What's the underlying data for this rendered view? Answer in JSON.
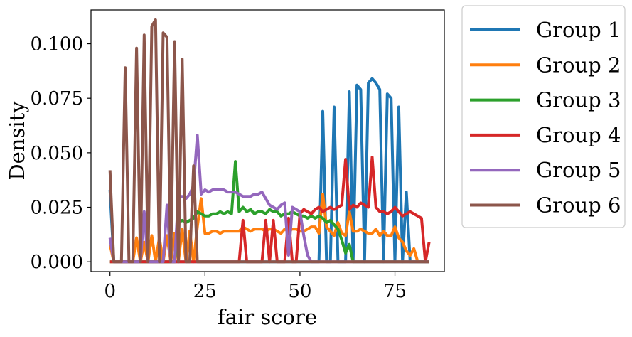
{
  "chart_data": {
    "type": "line",
    "xlabel": "fair score",
    "ylabel": "Density",
    "xlim": [
      -5,
      88
    ],
    "ylim": [
      -0.0045,
      0.1155
    ],
    "xticks": [
      0,
      25,
      50,
      75
    ],
    "xtick_labels": [
      "0",
      "25",
      "50",
      "75"
    ],
    "yticks": [
      0.0,
      0.025,
      0.05,
      0.075,
      0.1
    ],
    "ytick_labels": [
      "0.000",
      "0.025",
      "0.050",
      "0.075",
      "0.100"
    ],
    "grid": false,
    "legend_position": "outside-right",
    "series": [
      {
        "name": "Group 1",
        "color": "#1f77b4",
        "x": [
          0,
          1,
          2,
          3,
          4,
          5,
          6,
          7,
          8,
          9,
          10,
          11,
          12,
          13,
          14,
          15,
          16,
          17,
          18,
          19,
          20,
          21,
          22,
          23,
          24,
          25,
          26,
          27,
          28,
          29,
          30,
          31,
          32,
          33,
          34,
          35,
          36,
          37,
          38,
          39,
          40,
          41,
          42,
          43,
          44,
          45,
          46,
          47,
          48,
          49,
          50,
          51,
          52,
          53,
          54,
          55,
          56,
          57,
          58,
          59,
          60,
          61,
          62,
          63,
          64,
          65,
          66,
          67,
          68,
          69,
          70,
          71,
          72,
          73,
          74,
          75,
          76,
          77,
          78,
          79,
          80,
          81,
          82,
          83,
          84
        ],
        "y": [
          0.033,
          0,
          0,
          0,
          0,
          0,
          0,
          0,
          0,
          0,
          0,
          0,
          0,
          0,
          0,
          0,
          0,
          0,
          0,
          0,
          0,
          0,
          0,
          0,
          0,
          0,
          0,
          0,
          0,
          0,
          0,
          0,
          0,
          0,
          0,
          0,
          0,
          0,
          0,
          0,
          0,
          0,
          0,
          0,
          0,
          0,
          0,
          0,
          0,
          0,
          0,
          0,
          0,
          0,
          0,
          0,
          0.069,
          0,
          0,
          0.071,
          0,
          0,
          0,
          0.078,
          0,
          0.081,
          0.079,
          0,
          0.082,
          0.084,
          0.082,
          0.079,
          0,
          0.077,
          0.075,
          0,
          0.071,
          0,
          0.032,
          0,
          0,
          0,
          0,
          0,
          0
        ]
      },
      {
        "name": "Group 2",
        "color": "#ff7f0e",
        "x": [
          0,
          1,
          2,
          3,
          4,
          5,
          6,
          7,
          8,
          9,
          10,
          11,
          12,
          13,
          14,
          15,
          16,
          17,
          18,
          19,
          20,
          21,
          22,
          23,
          24,
          25,
          26,
          27,
          28,
          29,
          30,
          31,
          32,
          33,
          34,
          35,
          36,
          37,
          38,
          39,
          40,
          41,
          42,
          43,
          44,
          45,
          46,
          47,
          48,
          49,
          50,
          51,
          52,
          53,
          54,
          55,
          56,
          57,
          58,
          59,
          60,
          61,
          62,
          63,
          64,
          65,
          66,
          67,
          68,
          69,
          70,
          71,
          72,
          73,
          74,
          75,
          76,
          77,
          78,
          79,
          80,
          81,
          82,
          83,
          84
        ],
        "y": [
          0.008,
          0,
          0,
          0,
          0,
          0,
          0,
          0.011,
          0,
          0.009,
          0,
          0.012,
          0,
          0.011,
          0,
          0.012,
          0,
          0.013,
          0,
          0.015,
          0,
          0.014,
          0,
          0.016,
          0.029,
          0.013,
          0.013,
          0.014,
          0.014,
          0.013,
          0.014,
          0.014,
          0.014,
          0.014,
          0.014,
          0.016,
          0.015,
          0.014,
          0.015,
          0.015,
          0.015,
          0.014,
          0.015,
          0.015,
          0.014,
          0.013,
          0.015,
          0.014,
          0.015,
          0.015,
          0.014,
          0.014,
          0.015,
          0.016,
          0.016,
          0.013,
          0.031,
          0.016,
          0.014,
          0.012,
          0.018,
          0.013,
          0.012,
          0.023,
          0.014,
          0.014,
          0.015,
          0.014,
          0.013,
          0.013,
          0.015,
          0.012,
          0.014,
          0.012,
          0.012,
          0.016,
          0.011,
          0.009,
          0.005,
          0.003,
          0.006,
          0,
          0,
          0,
          0
        ]
      },
      {
        "name": "Group 3",
        "color": "#2ca02c",
        "x": [
          0,
          1,
          2,
          3,
          4,
          5,
          6,
          7,
          8,
          9,
          10,
          11,
          12,
          13,
          14,
          15,
          16,
          17,
          18,
          19,
          20,
          21,
          22,
          23,
          24,
          25,
          26,
          27,
          28,
          29,
          30,
          31,
          32,
          33,
          34,
          35,
          36,
          37,
          38,
          39,
          40,
          41,
          42,
          43,
          44,
          45,
          46,
          47,
          48,
          49,
          50,
          51,
          52,
          53,
          54,
          55,
          56,
          57,
          58,
          59,
          60,
          61,
          62,
          63,
          64,
          65,
          66,
          67,
          68,
          69,
          70,
          71,
          72,
          73,
          74,
          75,
          76,
          77,
          78,
          79,
          80,
          81,
          82,
          83,
          84
        ],
        "y": [
          0,
          0,
          0,
          0,
          0,
          0,
          0,
          0,
          0,
          0,
          0,
          0,
          0,
          0,
          0,
          0,
          0,
          0,
          0.018,
          0.019,
          0.018,
          0.019,
          0.02,
          0.023,
          0.022,
          0.021,
          0.021,
          0.022,
          0.022,
          0.023,
          0.022,
          0.023,
          0.022,
          0.046,
          0.023,
          0.025,
          0.023,
          0.024,
          0.022,
          0.023,
          0.023,
          0.022,
          0.024,
          0.023,
          0.023,
          0.021,
          0.022,
          0.022,
          0.023,
          0.022,
          0.021,
          0.021,
          0.02,
          0.021,
          0.02,
          0.021,
          0.02,
          0.018,
          0.019,
          0.017,
          0.015,
          0.01,
          0.004,
          0.008,
          0,
          0,
          0,
          0,
          0,
          0,
          0,
          0,
          0,
          0,
          0,
          0,
          0,
          0,
          0,
          0,
          0,
          0,
          0,
          0,
          0
        ]
      },
      {
        "name": "Group 4",
        "color": "#d62728",
        "x": [
          0,
          1,
          2,
          3,
          4,
          5,
          6,
          7,
          8,
          9,
          10,
          11,
          12,
          13,
          14,
          15,
          16,
          17,
          18,
          19,
          20,
          21,
          22,
          23,
          24,
          25,
          26,
          27,
          28,
          29,
          30,
          31,
          32,
          33,
          34,
          35,
          36,
          37,
          38,
          39,
          40,
          41,
          42,
          43,
          44,
          45,
          46,
          47,
          48,
          49,
          50,
          51,
          52,
          53,
          54,
          55,
          56,
          57,
          58,
          59,
          60,
          61,
          62,
          63,
          64,
          65,
          66,
          67,
          68,
          69,
          70,
          71,
          72,
          73,
          74,
          75,
          76,
          77,
          78,
          79,
          80,
          81,
          82,
          83,
          84
        ],
        "y": [
          0,
          0,
          0,
          0,
          0,
          0,
          0,
          0,
          0,
          0,
          0,
          0,
          0,
          0,
          0,
          0,
          0,
          0,
          0,
          0,
          0,
          0,
          0,
          0,
          0,
          0,
          0,
          0,
          0,
          0,
          0,
          0,
          0,
          0,
          0,
          0.019,
          0,
          0,
          0,
          0,
          0,
          0.019,
          0,
          0.019,
          0,
          0,
          0,
          0.02,
          0,
          0,
          0.022,
          0.024,
          0.023,
          0.022,
          0.024,
          0.025,
          0.023,
          0.024,
          0.025,
          0.024,
          0.025,
          0.026,
          0.047,
          0.024,
          0.026,
          0.025,
          0.027,
          0.026,
          0.025,
          0.048,
          0.025,
          0.023,
          0.023,
          0.022,
          0.023,
          0.025,
          0.023,
          0.021,
          0.022,
          0.023,
          0.022,
          0.021,
          0.02,
          0,
          0.009
        ]
      },
      {
        "name": "Group 5",
        "color": "#9467bd",
        "x": [
          0,
          1,
          2,
          3,
          4,
          5,
          6,
          7,
          8,
          9,
          10,
          11,
          12,
          13,
          14,
          15,
          16,
          17,
          18,
          19,
          20,
          21,
          22,
          23,
          24,
          25,
          26,
          27,
          28,
          29,
          30,
          31,
          32,
          33,
          34,
          35,
          36,
          37,
          38,
          39,
          40,
          41,
          42,
          43,
          44,
          45,
          46,
          47,
          48,
          49,
          50,
          51,
          52,
          53,
          54,
          55,
          56,
          57,
          58,
          59,
          60,
          61,
          62,
          63,
          64,
          65,
          66,
          67,
          68,
          69,
          70,
          71,
          72,
          73,
          74,
          75,
          76,
          77,
          78,
          79,
          80,
          81,
          82,
          83,
          84
        ],
        "y": [
          0.011,
          0,
          0,
          0,
          0,
          0,
          0,
          0,
          0,
          0.023,
          0,
          0,
          0,
          0,
          0,
          0.026,
          0,
          0,
          0.03,
          0.03,
          0.029,
          0.031,
          0.035,
          0.058,
          0.031,
          0.033,
          0.032,
          0.033,
          0.033,
          0.033,
          0.033,
          0.032,
          0.032,
          0.032,
          0.031,
          0.03,
          0.03,
          0.03,
          0.031,
          0.031,
          0.032,
          0.029,
          0.026,
          0.025,
          0.024,
          0.026,
          0.027,
          0.003,
          0.025,
          0.024,
          0.023,
          0.012,
          0.003,
          0,
          0,
          0,
          0,
          0,
          0,
          0,
          0,
          0,
          0,
          0,
          0,
          0,
          0,
          0,
          0,
          0,
          0,
          0,
          0,
          0,
          0,
          0,
          0,
          0,
          0,
          0,
          0,
          0,
          0,
          0,
          0
        ]
      },
      {
        "name": "Group 6",
        "color": "#8c564b",
        "x": [
          0,
          1,
          2,
          3,
          4,
          5,
          6,
          7,
          8,
          9,
          10,
          11,
          12,
          13,
          14,
          15,
          16,
          17,
          18,
          19,
          20,
          21,
          22,
          23,
          24,
          25,
          26,
          27,
          28,
          29,
          30,
          31,
          32,
          33,
          34,
          35,
          36,
          37,
          38,
          39,
          40,
          41,
          42,
          43,
          44,
          45,
          46,
          47,
          48,
          49,
          50,
          51,
          52,
          53,
          54,
          55,
          56,
          57,
          58,
          59,
          60,
          61,
          62,
          63,
          64,
          65,
          66,
          67,
          68,
          69,
          70,
          71,
          72,
          73,
          74,
          75,
          76,
          77,
          78,
          79,
          80,
          81,
          82,
          83,
          84
        ],
        "y": [
          0.042,
          0,
          0,
          0,
          0.089,
          0,
          0,
          0.098,
          0,
          0.104,
          0,
          0.108,
          0.111,
          0,
          0.105,
          0.103,
          0,
          0.101,
          0,
          0.093,
          0,
          0,
          0.044,
          0,
          0,
          0,
          0,
          0,
          0,
          0,
          0,
          0,
          0,
          0,
          0,
          0,
          0,
          0,
          0,
          0,
          0,
          0,
          0,
          0,
          0,
          0,
          0,
          0,
          0,
          0,
          0,
          0,
          0,
          0,
          0,
          0,
          0,
          0,
          0,
          0,
          0,
          0,
          0,
          0,
          0,
          0,
          0,
          0,
          0,
          0,
          0,
          0,
          0,
          0,
          0,
          0,
          0,
          0,
          0,
          0,
          0,
          0,
          0,
          0,
          0
        ]
      }
    ]
  }
}
